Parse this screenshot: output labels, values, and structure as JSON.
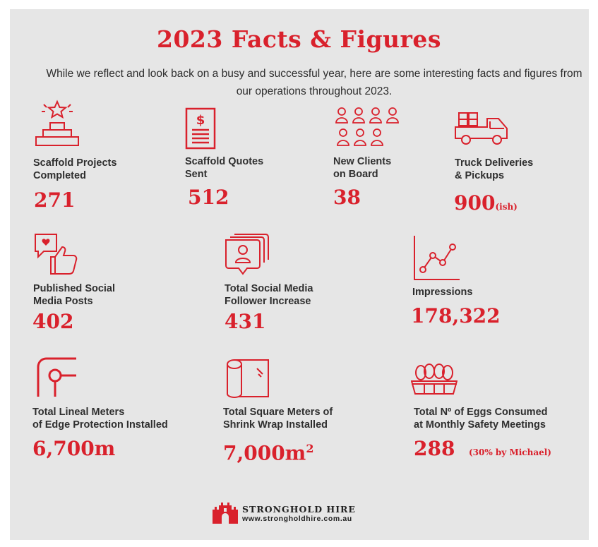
{
  "title": "2023 Facts & Figures",
  "intro": "While we reflect and look back on a busy and successful year, here are some interesting facts and figures from our operations throughout 2023.",
  "colors": {
    "accent": "#d9212c",
    "background": "#e6e6e6",
    "text": "#2f2f2f"
  },
  "stats": [
    {
      "icon": "podium-star-icon",
      "label_1": "Scaffold Projects",
      "label_2": "Completed",
      "value": "271",
      "suffix": ""
    },
    {
      "icon": "quote-document-icon",
      "label_1": "Scaffold Quotes",
      "label_2": "Sent",
      "value": "512",
      "suffix": ""
    },
    {
      "icon": "people-group-icon",
      "label_1": "New Clients",
      "label_2": "on Board",
      "value": "38",
      "suffix": ""
    },
    {
      "icon": "truck-icon",
      "label_1": "Truck Deliveries",
      "label_2": "& Pickups",
      "value": "900",
      "suffix": "(ish)"
    },
    {
      "icon": "social-like-icon",
      "label_1": "Published Social",
      "label_2": "Media Posts",
      "value": "402",
      "suffix": ""
    },
    {
      "icon": "follower-profile-icon",
      "label_1": "Total Social Media",
      "label_2": "Follower Increase",
      "value": "431",
      "suffix": ""
    },
    {
      "icon": "line-graph-icon",
      "label_1": "Impressions",
      "label_2": "",
      "value": "178,322",
      "suffix": ""
    },
    {
      "icon": "edge-protection-icon",
      "label_1": "Total Lineal Meters",
      "label_2": "of Edge Protection Installed",
      "value": "6,700m",
      "suffix": ""
    },
    {
      "icon": "shrink-wrap-roll-icon",
      "label_1": "Total Square Meters of",
      "label_2": "Shrink Wrap Installed",
      "value": "7,000m",
      "suffix": "2"
    },
    {
      "icon": "egg-carton-icon",
      "label_1": "Total Nº of Eggs Consumed",
      "label_2": "at Monthly Safety Meetings",
      "value": "288",
      "suffix": "(30% by Michael)"
    }
  ],
  "footer": {
    "brand": "STRONGHOLD HIRE",
    "website": "www.strongholdhire.com.au",
    "logo_icon": "castle-logo-icon"
  }
}
